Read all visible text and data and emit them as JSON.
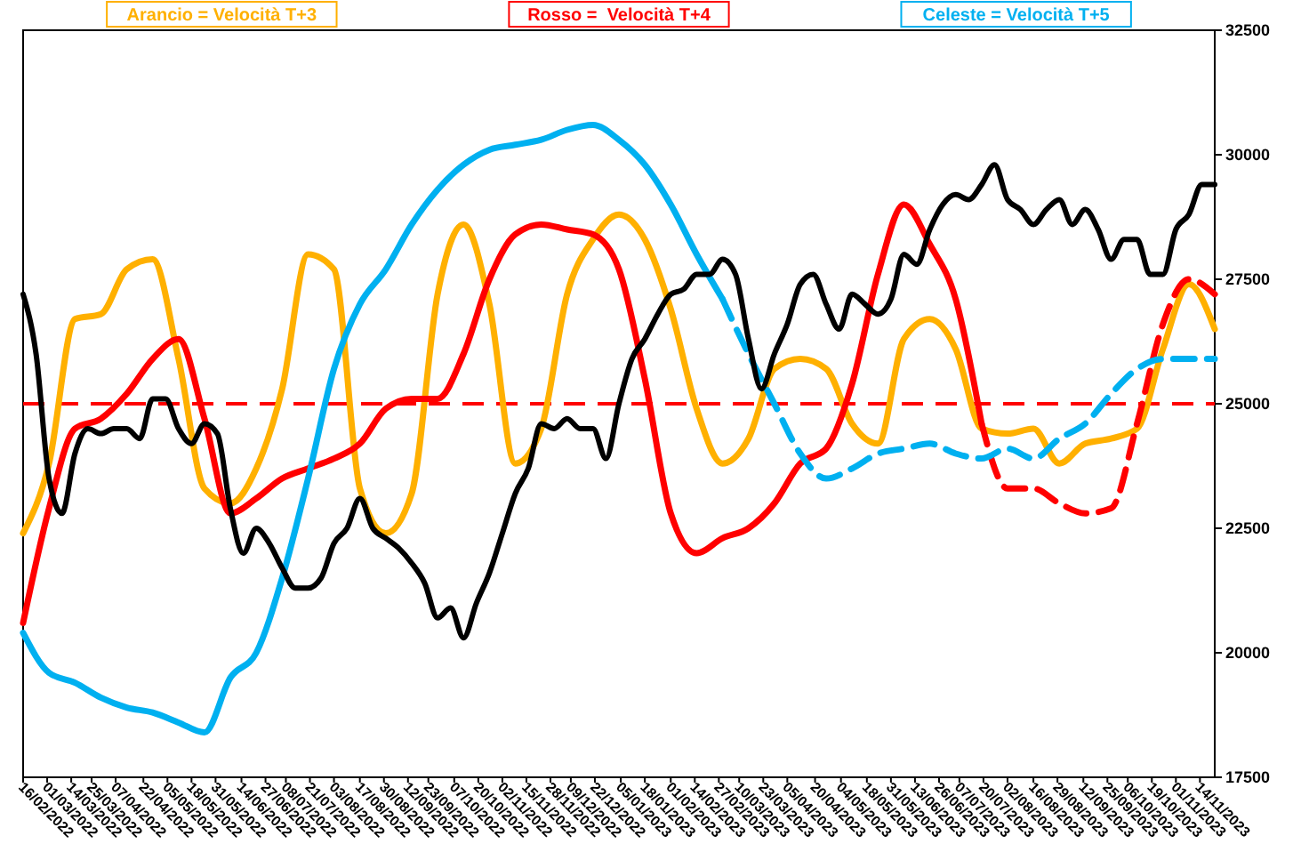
{
  "chart_data": {
    "type": "line",
    "legend": "top",
    "line_style": "solid",
    "xlim": [
      "2022-02-16",
      "2023-11-22"
    ],
    "ylim": [
      17500,
      32500
    ],
    "yticks": [
      17500,
      20000,
      22500,
      25000,
      27500,
      30000,
      32500
    ],
    "xticks": [
      {
        "value": "2022-02-16",
        "label": "16/02/2022"
      },
      {
        "value": "2022-03-01",
        "label": "01/03/2022"
      },
      {
        "value": "2022-03-14",
        "label": "14/03/2022"
      },
      {
        "value": "2022-03-25",
        "label": "25/03/2022"
      },
      {
        "value": "2022-04-07",
        "label": "07/04/2022"
      },
      {
        "value": "2022-04-22",
        "label": "22/04/2022"
      },
      {
        "value": "2022-05-05",
        "label": "05/05/2022"
      },
      {
        "value": "2022-05-18",
        "label": "18/05/2022"
      },
      {
        "value": "2022-05-31",
        "label": "31/05/2022"
      },
      {
        "value": "2022-06-14",
        "label": "14/06/2022"
      },
      {
        "value": "2022-06-27",
        "label": "27/06/2022"
      },
      {
        "value": "2022-07-08",
        "label": "08/07/2022"
      },
      {
        "value": "2022-07-21",
        "label": "21/07/2022"
      },
      {
        "value": "2022-08-03",
        "label": "03/08/2022"
      },
      {
        "value": "2022-08-17",
        "label": "17/08/2022"
      },
      {
        "value": "2022-08-30",
        "label": "30/08/2022"
      },
      {
        "value": "2022-09-12",
        "label": "12/09/2022"
      },
      {
        "value": "2022-09-23",
        "label": "23/09/2022"
      },
      {
        "value": "2022-10-07",
        "label": "07/10/2022"
      },
      {
        "value": "2022-10-20",
        "label": "20/10/2022"
      },
      {
        "value": "2022-11-02",
        "label": "02/11/2022"
      },
      {
        "value": "2022-11-15",
        "label": "15/11/2022"
      },
      {
        "value": "2022-11-28",
        "label": "28/11/2022"
      },
      {
        "value": "2022-12-09",
        "label": "09/12/2022"
      },
      {
        "value": "2022-12-22",
        "label": "22/12/2022"
      },
      {
        "value": "2023-01-05",
        "label": "05/01/2023"
      },
      {
        "value": "2023-01-18",
        "label": "18/01/2023"
      },
      {
        "value": "2023-02-01",
        "label": "01/02/2023"
      },
      {
        "value": "2023-02-14",
        "label": "14/02/2023"
      },
      {
        "value": "2023-02-27",
        "label": "27/02/2023"
      },
      {
        "value": "2023-03-10",
        "label": "10/03/2023"
      },
      {
        "value": "2023-03-23",
        "label": "23/03/2023"
      },
      {
        "value": "2023-04-05",
        "label": "05/04/2023"
      },
      {
        "value": "2023-04-20",
        "label": "20/04/2023"
      },
      {
        "value": "2023-05-04",
        "label": "04/05/2023"
      },
      {
        "value": "2023-05-18",
        "label": "18/05/2023"
      },
      {
        "value": "2023-05-31",
        "label": "31/05/2023"
      },
      {
        "value": "2023-06-13",
        "label": "13/06/2023"
      },
      {
        "value": "2023-06-26",
        "label": "26/06/2023"
      },
      {
        "value": "2023-07-07",
        "label": "07/07/2023"
      },
      {
        "value": "2023-07-20",
        "label": "20/07/2023"
      },
      {
        "value": "2023-08-02",
        "label": "02/08/2023"
      },
      {
        "value": "2023-08-16",
        "label": "16/08/2023"
      },
      {
        "value": "2023-08-29",
        "label": "29/08/2023"
      },
      {
        "value": "2023-09-12",
        "label": "12/09/2023"
      },
      {
        "value": "2023-09-25",
        "label": "25/09/2023"
      },
      {
        "value": "2023-10-06",
        "label": "06/10/2023"
      },
      {
        "value": "2023-10-19",
        "label": "19/10/2023"
      },
      {
        "value": "2023-11-01",
        "label": "01/11/2023"
      },
      {
        "value": "2023-11-14",
        "label": "14/11/2023"
      }
    ],
    "ref_lines": [
      {
        "axis": "y",
        "value": 25000,
        "color": "#ff0000",
        "line_style": "dashed"
      }
    ],
    "series": [
      {
        "name": "Arancio = Velocità T+3",
        "color": "#ffb000",
        "x": [
          "2022-02-16",
          "2022-03-02",
          "2022-03-16",
          "2022-03-30",
          "2022-04-13",
          "2022-04-27",
          "2022-05-11",
          "2022-05-25",
          "2022-06-08",
          "2022-06-22",
          "2022-07-06",
          "2022-07-20",
          "2022-08-03",
          "2022-08-17",
          "2022-08-31",
          "2022-09-14",
          "2022-09-28",
          "2022-10-12",
          "2022-10-26",
          "2022-11-09",
          "2022-11-23",
          "2022-12-07",
          "2022-12-21",
          "2023-01-04",
          "2023-01-18",
          "2023-02-01",
          "2023-02-15",
          "2023-03-01",
          "2023-03-15",
          "2023-03-29",
          "2023-04-12",
          "2023-04-26",
          "2023-05-10",
          "2023-05-24",
          "2023-06-07",
          "2023-06-21",
          "2023-07-05",
          "2023-07-19",
          "2023-08-02",
          "2023-08-16",
          "2023-08-30",
          "2023-09-13",
          "2023-09-27",
          "2023-10-11",
          "2023-10-25",
          "2023-11-08",
          "2023-11-22"
        ],
        "values": [
          22400,
          23800,
          26700,
          26800,
          27700,
          27900,
          25900,
          23300,
          23000,
          23700,
          25300,
          28000,
          27700,
          23300,
          22400,
          23200,
          27200,
          28600,
          27000,
          23800,
          24500,
          27200,
          28300,
          28800,
          28300,
          26900,
          24900,
          23800,
          24300,
          25700,
          25900,
          25700,
          24600,
          24200,
          26300,
          26700,
          26100,
          24500,
          24400,
          24500,
          23800,
          24200,
          24300,
          24500,
          26100,
          27400,
          26500
        ]
      },
      {
        "name": "Rosso =  Velocità T+4",
        "color": "#ff0000",
        "x": [
          "2022-02-16",
          "2022-03-02",
          "2022-03-16",
          "2022-03-30",
          "2022-04-13",
          "2022-04-27",
          "2022-05-11",
          "2022-05-25",
          "2022-06-08",
          "2022-06-22",
          "2022-07-06",
          "2022-07-20",
          "2022-08-03",
          "2022-08-17",
          "2022-08-31",
          "2022-09-14",
          "2022-09-28",
          "2022-10-12",
          "2022-10-26",
          "2022-11-09",
          "2022-11-23",
          "2022-12-07",
          "2022-12-21",
          "2023-01-04",
          "2023-01-18",
          "2023-02-01",
          "2023-02-15",
          "2023-03-01",
          "2023-03-15",
          "2023-03-29",
          "2023-04-12",
          "2023-04-26",
          "2023-05-10",
          "2023-05-24",
          "2023-06-07",
          "2023-06-21",
          "2023-07-05",
          "2023-07-19"
        ],
        "values": [
          20600,
          22900,
          24500,
          24700,
          25200,
          25900,
          26300,
          24700,
          22800,
          23100,
          23500,
          23700,
          23900,
          24200,
          24900,
          25100,
          25100,
          26000,
          27500,
          28400,
          28600,
          28500,
          28400,
          27700,
          25500,
          22800,
          22000,
          22300,
          22500,
          23000,
          23800,
          24100,
          25400,
          27600,
          29000,
          28200,
          27100,
          24600
        ]
      },
      {
        "color": "#ff0000",
        "line_style": "dashed",
        "x": [
          "2023-07-19",
          "2023-08-02",
          "2023-08-16",
          "2023-08-30",
          "2023-09-13",
          "2023-09-27",
          "2023-10-11",
          "2023-10-25",
          "2023-11-08",
          "2023-11-22"
        ],
        "values": [
          24600,
          23300,
          23300,
          23000,
          22800,
          22900,
          24600,
          26600,
          27500,
          27200
        ]
      },
      {
        "name": "Celeste = Velocità T+5",
        "color": "#00b0f0",
        "x": [
          "2022-02-16",
          "2022-03-02",
          "2022-03-16",
          "2022-03-30",
          "2022-04-13",
          "2022-04-27",
          "2022-05-11",
          "2022-05-25",
          "2022-06-08",
          "2022-06-22",
          "2022-07-06",
          "2022-07-20",
          "2022-08-03",
          "2022-08-17",
          "2022-08-31",
          "2022-09-14",
          "2022-09-28",
          "2022-10-12",
          "2022-10-26",
          "2022-11-09",
          "2022-11-23",
          "2022-12-07",
          "2022-12-21",
          "2023-01-04",
          "2023-01-18",
          "2023-02-01",
          "2023-02-15",
          "2023-03-01"
        ],
        "values": [
          20400,
          19600,
          19400,
          19100,
          18900,
          18800,
          18600,
          18400,
          19500,
          20000,
          21500,
          23500,
          25700,
          27000,
          27700,
          28600,
          29300,
          29800,
          30100,
          30200,
          30300,
          30500,
          30600,
          30300,
          29800,
          29000,
          28000,
          27100
        ]
      },
      {
        "color": "#00b0f0",
        "line_style": "dashed",
        "x": [
          "2023-03-01",
          "2023-03-15",
          "2023-03-29",
          "2023-04-12",
          "2023-04-26",
          "2023-05-10",
          "2023-05-24",
          "2023-06-07",
          "2023-06-21",
          "2023-07-05",
          "2023-07-19",
          "2023-08-02",
          "2023-08-16",
          "2023-08-30",
          "2023-09-13",
          "2023-09-27",
          "2023-10-11",
          "2023-10-25",
          "2023-11-08",
          "2023-11-22"
        ],
        "values": [
          27100,
          26000,
          25000,
          24000,
          23500,
          23700,
          24000,
          24100,
          24200,
          24000,
          23900,
          24100,
          23900,
          24300,
          24600,
          25200,
          25700,
          25900,
          25900,
          25900
        ]
      },
      {
        "color": "#000000",
        "x": [
          "2022-02-16",
          "2022-02-23",
          "2022-03-02",
          "2022-03-09",
          "2022-03-16",
          "2022-03-23",
          "2022-03-30",
          "2022-04-06",
          "2022-04-13",
          "2022-04-20",
          "2022-04-27",
          "2022-05-04",
          "2022-05-11",
          "2022-05-18",
          "2022-05-25",
          "2022-06-01",
          "2022-06-08",
          "2022-06-15",
          "2022-06-22",
          "2022-06-29",
          "2022-07-06",
          "2022-07-13",
          "2022-07-20",
          "2022-07-27",
          "2022-08-03",
          "2022-08-10",
          "2022-08-17",
          "2022-08-24",
          "2022-08-31",
          "2022-09-07",
          "2022-09-14",
          "2022-09-21",
          "2022-09-28",
          "2022-10-05",
          "2022-10-12",
          "2022-10-19",
          "2022-10-26",
          "2022-11-02",
          "2022-11-09",
          "2022-11-16",
          "2022-11-23",
          "2022-11-30",
          "2022-12-07",
          "2022-12-14",
          "2022-12-21",
          "2022-12-28",
          "2023-01-04",
          "2023-01-11",
          "2023-01-18",
          "2023-01-25",
          "2023-02-01",
          "2023-02-08",
          "2023-02-15",
          "2023-02-22",
          "2023-03-01",
          "2023-03-08",
          "2023-03-15",
          "2023-03-22",
          "2023-03-29",
          "2023-04-05",
          "2023-04-12",
          "2023-04-19",
          "2023-04-26",
          "2023-05-03",
          "2023-05-10",
          "2023-05-17",
          "2023-05-24",
          "2023-05-31",
          "2023-06-07",
          "2023-06-14",
          "2023-06-21",
          "2023-06-28",
          "2023-07-05",
          "2023-07-12",
          "2023-07-19",
          "2023-07-26",
          "2023-08-02",
          "2023-08-09",
          "2023-08-16",
          "2023-08-23",
          "2023-08-30",
          "2023-09-06",
          "2023-09-13",
          "2023-09-20",
          "2023-09-27",
          "2023-10-04",
          "2023-10-11",
          "2023-10-18",
          "2023-10-25",
          "2023-11-01",
          "2023-11-08",
          "2023-11-15",
          "2023-11-22"
        ],
        "values": [
          27200,
          26000,
          23500,
          22800,
          24000,
          24500,
          24400,
          24500,
          24500,
          24300,
          25100,
          25100,
          24500,
          24200,
          24600,
          24400,
          22900,
          22000,
          22500,
          22200,
          21700,
          21300,
          21300,
          21500,
          22200,
          22500,
          23100,
          22500,
          22300,
          22100,
          21800,
          21400,
          20700,
          20900,
          20300,
          21000,
          21600,
          22400,
          23200,
          23700,
          24600,
          24500,
          24700,
          24500,
          24500,
          23900,
          25000,
          25900,
          26300,
          26800,
          27200,
          27300,
          27600,
          27600,
          27900,
          27600,
          26300,
          25300,
          26000,
          26600,
          27400,
          27600,
          27000,
          26500,
          27200,
          27000,
          26800,
          27100,
          28000,
          27800,
          28500,
          29000,
          29200,
          29100,
          29400,
          29800,
          29100,
          28900,
          28600,
          28900,
          29100,
          28600,
          28900,
          28500,
          27900,
          28300,
          28300,
          27600,
          27600,
          28500,
          28800,
          29400,
          29400
        ]
      }
    ]
  }
}
